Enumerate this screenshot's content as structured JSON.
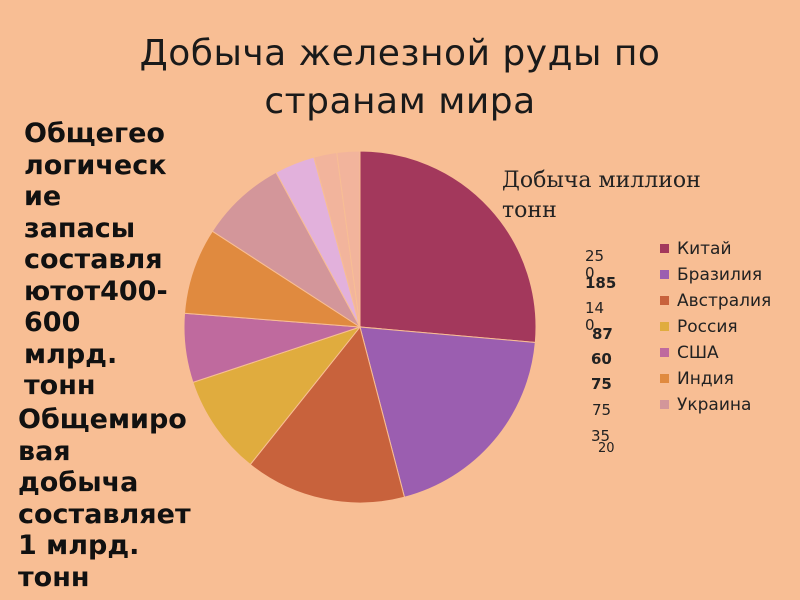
{
  "slide": {
    "title_line1": "Добыча железной руды  по",
    "title_line2": "странам мира",
    "note_reserves": "Общегео\nлогическ\nие\nзапасы\nсоставля\nютот400-\n600\nмлрд.\nтонн",
    "note_production": "Общемиро\nвая\nдобыча\nсоставляет\n1 млрд.\nтонн"
  },
  "chart_data": {
    "type": "pie",
    "title": "Добыча миллион тонн",
    "categories": [
      "Китай",
      "Бразилия",
      "Австралия",
      "Россия",
      "США",
      "Индия",
      "Украина",
      "",
      "",
      ""
    ],
    "values": [
      250,
      185,
      140,
      87,
      60,
      75,
      75,
      35,
      20,
      20
    ],
    "label_texts": [
      "25\n0",
      "185",
      "14\n0",
      "87",
      "60",
      "75",
      "75",
      "35",
      "20"
    ],
    "colors": [
      "#a3385c",
      "#9b5eb0",
      "#c8623c",
      "#e0ac3e",
      "#bf6a9e",
      "#e08a3f",
      "#d3969a",
      "#e2b1dc",
      "#f2b49c",
      "#f2b49c"
    ],
    "legend_position": "right"
  }
}
